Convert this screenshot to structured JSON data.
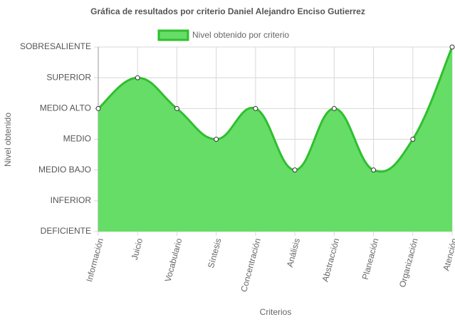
{
  "chart_data": {
    "type": "line",
    "title": "Gráfica de resultados por criterio Daniel Alejandro Enciso Gutierrez",
    "x_label": "Criterios",
    "y_label": "Nivel obtenido",
    "categories": [
      "Información",
      "Juicio",
      "Vocabulario",
      "Síntesis",
      "Concentración",
      "Análisis",
      "Abstracción",
      "Planeación",
      "Organización",
      "Atención"
    ],
    "series": [
      {
        "name": "Nivel obtenido por criterio",
        "color": "#2fbf2f",
        "fill": "#66dd66",
        "values": [
          4,
          5,
          4,
          3,
          4,
          2,
          4,
          2,
          3,
          6
        ]
      }
    ],
    "ylim": [
      0,
      6
    ],
    "yticks": [
      {
        "value": 0,
        "label": "DEFICIENTE"
      },
      {
        "value": 1,
        "label": "INFERIOR"
      },
      {
        "value": 2,
        "label": "MEDIO BAJO"
      },
      {
        "value": 3,
        "label": "MEDIO"
      },
      {
        "value": 4,
        "label": "MEDIO ALTO"
      },
      {
        "value": 5,
        "label": "SUPERIOR"
      },
      {
        "value": 6,
        "label": "SOBRESALIENTE"
      }
    ],
    "grid": true,
    "legend": "top"
  }
}
